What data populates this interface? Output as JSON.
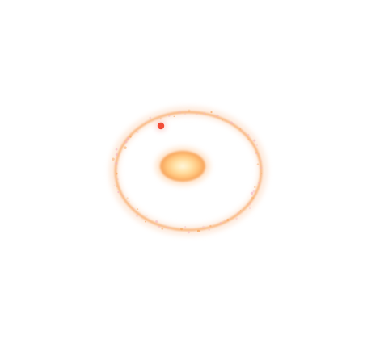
{
  "scene": {
    "background_color": "#ffffff",
    "ring": {
      "stroke_color": "#f7a35a",
      "glow_color": "#fde2cf",
      "speckle_color": "#f6b6c6"
    },
    "center_blob": {
      "core_color": "#fff7dc",
      "mid_color": "#ffc37a",
      "edge_color": "#f28a3a"
    },
    "marker_dot": {
      "color": "#f0442e"
    }
  }
}
